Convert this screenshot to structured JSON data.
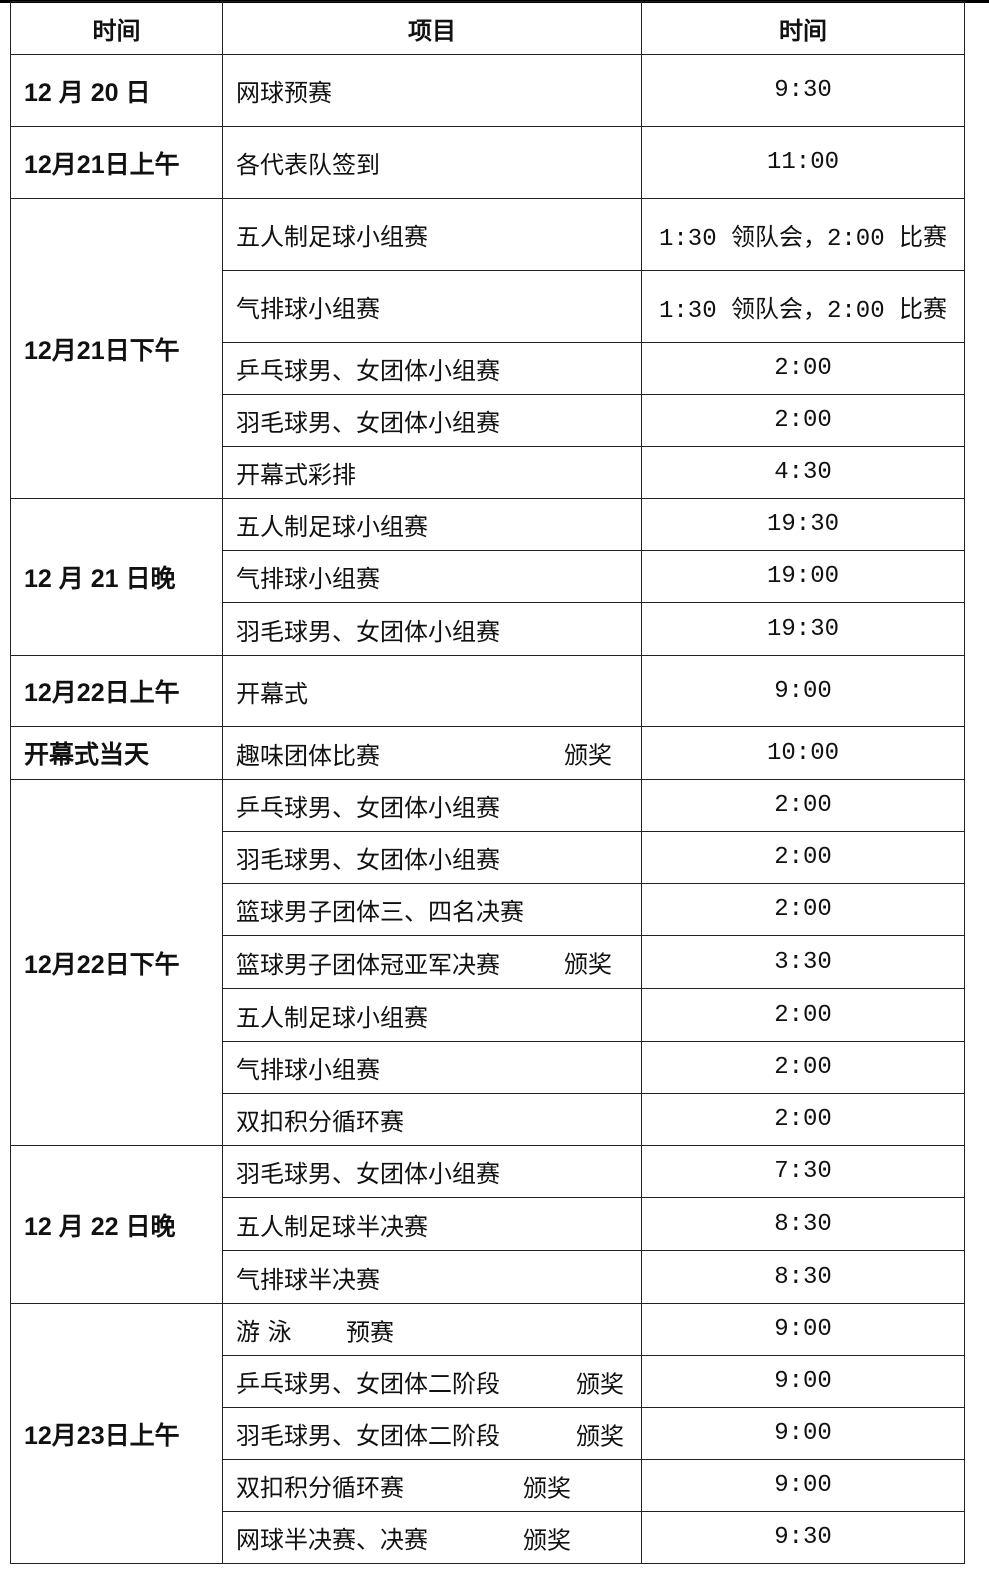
{
  "header": {
    "col1": "时间",
    "col2": "项目",
    "col3": "时间"
  },
  "groups": [
    {
      "date": "12 月 20 日",
      "rows": [
        {
          "item": "网球预赛",
          "time": "9:30"
        }
      ]
    },
    {
      "date": "12月21日上午",
      "rows": [
        {
          "item": "各代表队签到",
          "time": "11:00"
        }
      ]
    },
    {
      "date": "12月21日下午",
      "rows": [
        {
          "item": "五人制足球小组赛",
          "time": "1:30 领队会，2:00 比赛"
        },
        {
          "item": "气排球小组赛",
          "time": "1:30 领队会，2:00 比赛"
        },
        {
          "item": "乒乓球男、女团体小组赛",
          "time": "2:00"
        },
        {
          "item": "羽毛球男、女团体小组赛",
          "time": "2:00"
        },
        {
          "item": "开幕式彩排",
          "time": "4:30"
        }
      ]
    },
    {
      "date": "12 月 21 日晚",
      "rows": [
        {
          "item": "五人制足球小组赛",
          "time": "19:30"
        },
        {
          "item": "气排球小组赛",
          "time": "19:00"
        },
        {
          "item": "羽毛球男、女团体小组赛",
          "time": "19:30"
        }
      ]
    },
    {
      "date": "12月22日上午",
      "rows": [
        {
          "item": "开幕式",
          "time": "9:00"
        }
      ]
    },
    {
      "date": "开幕式当天",
      "rows": [
        {
          "item": "趣味团体比赛",
          "award": "颁奖",
          "time": "10:00"
        }
      ]
    },
    {
      "date": "12月22日下午",
      "rows": [
        {
          "item": "乒乓球男、女团体小组赛",
          "time": "2:00"
        },
        {
          "item": "羽毛球男、女团体小组赛",
          "time": "2:00"
        },
        {
          "item": "篮球男子团体三、四名决赛",
          "time": "2:00"
        },
        {
          "item": "篮球男子团体冠亚军决赛",
          "award": "颁奖",
          "time": "3:30"
        },
        {
          "item": "五人制足球小组赛",
          "time": "2:00"
        },
        {
          "item": "气排球小组赛",
          "time": "2:00"
        },
        {
          "item": "双扣积分循环赛",
          "time": "2:00"
        }
      ]
    },
    {
      "date": "12 月 22 日晚",
      "rows": [
        {
          "item": "羽毛球男、女团体小组赛",
          "time": "7:30"
        },
        {
          "item": "五人制足球半决赛",
          "time": "8:30"
        },
        {
          "item": "气排球半决赛",
          "time": "8:30"
        }
      ]
    },
    {
      "date": "12月23日上午",
      "rows": [
        {
          "item": "游 泳",
          "award": "预赛",
          "time": "9:00"
        },
        {
          "item": "乒乓球男、女团体二阶段",
          "award": "颁奖",
          "time": "9:00"
        },
        {
          "item": "羽毛球男、女团体二阶段",
          "award": "颁奖",
          "time": "9:00"
        },
        {
          "item": "双扣积分循环赛",
          "award": "颁奖",
          "time": "9:00"
        },
        {
          "item": "网球半决赛、决赛",
          "award": "颁奖",
          "time": "9:30"
        }
      ]
    }
  ]
}
